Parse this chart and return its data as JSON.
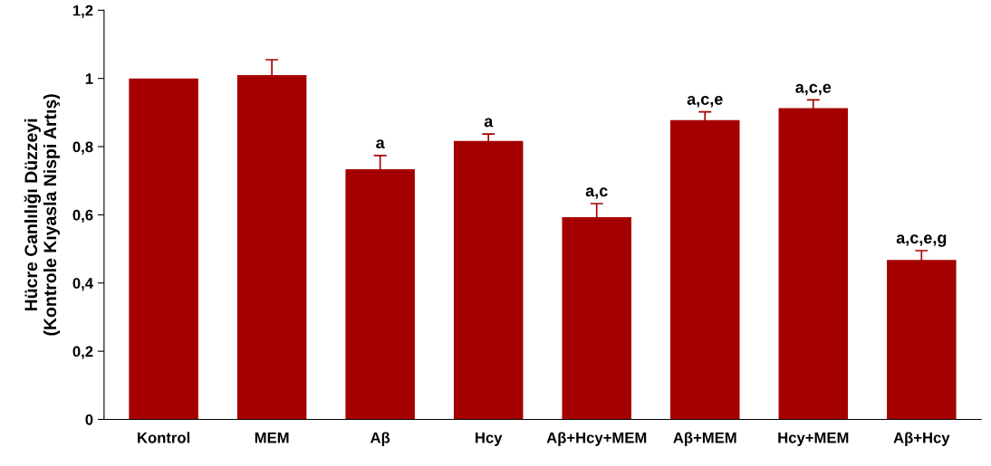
{
  "chart_data": {
    "type": "bar",
    "ylabel": "Hücre Canlılığı Düzzeyi\n(Kontrole Kıyasla Nispi Artış)",
    "categories": [
      "Kontrol",
      "MEM",
      "Aβ",
      "Hcy",
      "Aβ+Hcy+MEM",
      "Aβ+MEM",
      "Hcy+MEM",
      "Aβ+Hcy"
    ],
    "values": [
      1.0,
      1.01,
      0.734,
      0.817,
      0.593,
      0.878,
      0.913,
      0.468
    ],
    "errors": [
      null,
      0.045,
      0.04,
      0.02,
      0.04,
      0.024,
      0.024,
      0.027
    ],
    "color": "#a50000",
    "ylim": [
      0,
      1.2
    ],
    "yticks": [
      0,
      {
        "value": 0.2,
        "label": "0,2"
      },
      {
        "value": 0.4,
        "label": "0,4"
      },
      {
        "value": 0.6,
        "label": "0,6"
      },
      {
        "value": 0.8,
        "label": "0,8"
      },
      1,
      {
        "value": 1.2,
        "label": "1,2"
      }
    ],
    "annotations": [
      {
        "text": "a",
        "x": "Aβ",
        "y": 0.774
      },
      {
        "text": "a",
        "x": "Hcy",
        "y": 0.837
      },
      {
        "text": "a,c",
        "x": "Aβ+Hcy+MEM",
        "y": 0.633
      },
      {
        "text": "a,c,e",
        "x": "Aβ+MEM",
        "y": 0.902
      },
      {
        "text": "a,c,e",
        "x": "Hcy+MEM",
        "y": 0.937
      },
      {
        "text": "a,c,e,g",
        "x": "Aβ+Hcy",
        "y": 0.495
      }
    ],
    "grid": false,
    "legend": false
  }
}
